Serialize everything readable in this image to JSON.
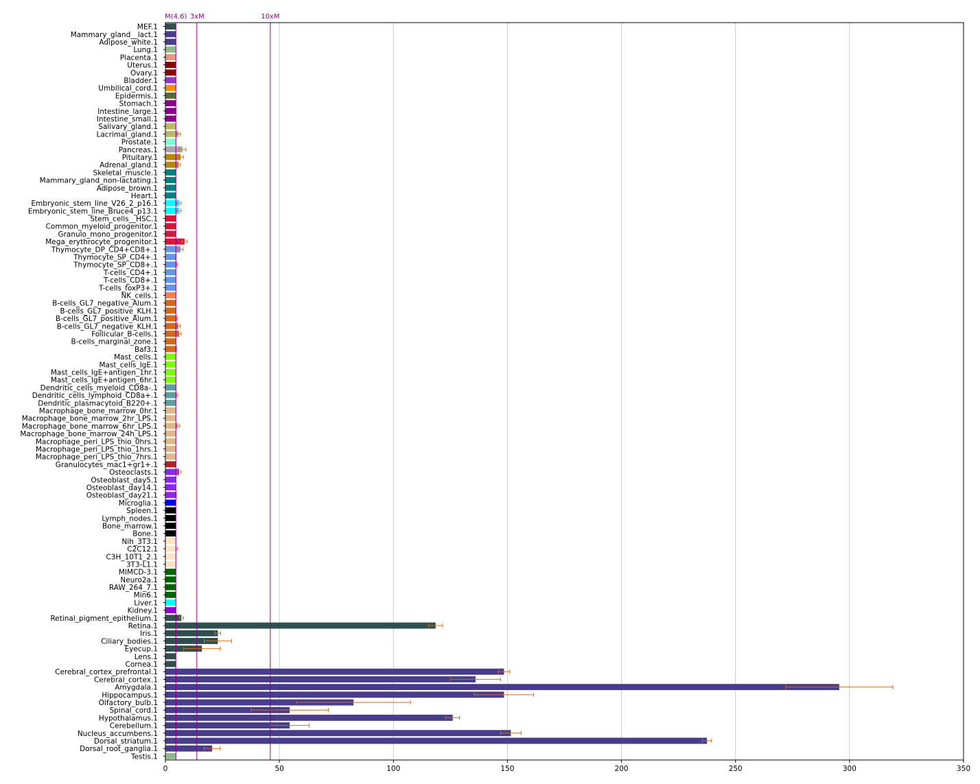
{
  "chart_data": {
    "type": "bar",
    "orientation": "horizontal",
    "xlim": [
      0,
      350
    ],
    "x_ticks": [
      0,
      50,
      100,
      150,
      200,
      250,
      300,
      350
    ],
    "grid": "vertical",
    "error_bar_color": "#d2691e",
    "ref_line_color": "#8b008b",
    "reference_lines": [
      {
        "label": "M(4.6)",
        "value": 4.6
      },
      {
        "label": "3xM",
        "value": 13.8
      },
      {
        "label": "10xM",
        "value": 46
      }
    ],
    "categories": [
      {
        "name": "MEF.1",
        "value": 4.6,
        "error": 0,
        "color": "#2f4f4f"
      },
      {
        "name": "Mammary_gland__lact.1",
        "value": 4.6,
        "error": 0,
        "color": "#483d8b"
      },
      {
        "name": "Adipose_white.1",
        "value": 4.6,
        "error": 0,
        "color": "#483d8b"
      },
      {
        "name": "Lung.1",
        "value": 4.6,
        "error": 0,
        "color": "#8fbc8f"
      },
      {
        "name": "Placenta.1",
        "value": 4.6,
        "error": 0,
        "color": "#e9967a"
      },
      {
        "name": "Uterus.1",
        "value": 4.6,
        "error": 0,
        "color": "#8b0000"
      },
      {
        "name": "Ovary.1",
        "value": 4.6,
        "error": 0,
        "color": "#8b0000"
      },
      {
        "name": "Bladder.1",
        "value": 4.6,
        "error": 0,
        "color": "#9932cc"
      },
      {
        "name": "Umbilical_cord.1",
        "value": 4.6,
        "error": 0,
        "color": "#ff8c00"
      },
      {
        "name": "Epidermis.1",
        "value": 4.6,
        "error": 0,
        "color": "#556b2f"
      },
      {
        "name": "Stomach.1",
        "value": 4.6,
        "error": 0,
        "color": "#8b008b"
      },
      {
        "name": "Intestine_large.1",
        "value": 4.8,
        "error": 0,
        "color": "#8b008b"
      },
      {
        "name": "Intestine_small.1",
        "value": 4.6,
        "error": 0,
        "color": "#8b008b"
      },
      {
        "name": "Salivary_gland.1",
        "value": 4.6,
        "error": 0,
        "color": "#bdb76b"
      },
      {
        "name": "Lacrimal_gland.1",
        "value": 5.8,
        "error": 0.8,
        "color": "#bdb76b"
      },
      {
        "name": "Prostate.1",
        "value": 4.6,
        "error": 0,
        "color": "#7fffd4"
      },
      {
        "name": "Pancreas.1",
        "value": 7.5,
        "error": 1.5,
        "color": "#a9a9a9"
      },
      {
        "name": "Pituitary.1",
        "value": 6.7,
        "error": 1.2,
        "color": "#b8860b"
      },
      {
        "name": "Adrenal_gland.1",
        "value": 5.8,
        "error": 0.8,
        "color": "#b8860b"
      },
      {
        "name": "Skeletal_muscle.1",
        "value": 4.6,
        "error": 0,
        "color": "#008080"
      },
      {
        "name": "Mammary_gland_non-lactating.1",
        "value": 4.6,
        "error": 0,
        "color": "#008080"
      },
      {
        "name": "Adipose_brown.1",
        "value": 4.6,
        "error": 0,
        "color": "#008080"
      },
      {
        "name": "Heart.1",
        "value": 4.6,
        "error": 0,
        "color": "#008080"
      },
      {
        "name": "Embryonic_stem_line_V26_2_p16.1",
        "value": 6.0,
        "error": 0.9,
        "color": "#00ffff"
      },
      {
        "name": "Embryonic_stem_line_Bruce4_p13.1",
        "value": 6.0,
        "error": 0.9,
        "color": "#00ffff"
      },
      {
        "name": "Stem_cells__HSC.1",
        "value": 4.6,
        "error": 0,
        "color": "#dc143c"
      },
      {
        "name": "Common_myeloid_progenitor.1",
        "value": 4.6,
        "error": 0,
        "color": "#dc143c"
      },
      {
        "name": "Granulo_mono_progenitor.1",
        "value": 4.6,
        "error": 0,
        "color": "#dc143c"
      },
      {
        "name": "Mega_erythrocyte_progenitor.1",
        "value": 8.4,
        "error": 1.2,
        "color": "#dc143c"
      },
      {
        "name": "Thymocyte_DP_CD4+CD8+.1",
        "value": 6.6,
        "error": 1.2,
        "color": "#6495ed"
      },
      {
        "name": "Thymocyte_SP_CD4+.1",
        "value": 4.8,
        "error": 0,
        "color": "#6495ed"
      },
      {
        "name": "Thymocyte_SP_CD8+.1",
        "value": 5.0,
        "error": 0.3,
        "color": "#6495ed"
      },
      {
        "name": "T-cells_CD4+.1",
        "value": 4.6,
        "error": 0,
        "color": "#6495ed"
      },
      {
        "name": "T-cells_CD8+.1",
        "value": 4.6,
        "error": 0,
        "color": "#6495ed"
      },
      {
        "name": "T-cells_foxP3+.1",
        "value": 4.6,
        "error": 0,
        "color": "#6495ed"
      },
      {
        "name": "NK_cells.1",
        "value": 4.6,
        "error": 0,
        "color": "#ff7f50"
      },
      {
        "name": "B-cells_GL7_negative_Alum.1",
        "value": 4.6,
        "error": 0,
        "color": "#d2691e"
      },
      {
        "name": "B-cells_GL7_positive_KLH.1",
        "value": 4.6,
        "error": 0,
        "color": "#d2691e"
      },
      {
        "name": "B-cells_GL7_positive_Alum.1",
        "value": 5.0,
        "error": 0.3,
        "color": "#d2691e"
      },
      {
        "name": "B-cells_GL7_negative_KLH.1",
        "value": 5.6,
        "error": 0.9,
        "color": "#d2691e"
      },
      {
        "name": "Follicular_B-cells.1",
        "value": 6.0,
        "error": 0.9,
        "color": "#d2691e"
      },
      {
        "name": "B-cells_marginal_zone.1",
        "value": 4.6,
        "error": 0,
        "color": "#d2691e"
      },
      {
        "name": "Baf3.1",
        "value": 5.0,
        "error": 0,
        "color": "#d2691e"
      },
      {
        "name": "Mast_cells.1",
        "value": 4.8,
        "error": 0,
        "color": "#7cfc00"
      },
      {
        "name": "Mast_cells_IgE.1",
        "value": 4.6,
        "error": 0,
        "color": "#7cfc00"
      },
      {
        "name": "Mast_cells_IgE+antigen_1hr.1",
        "value": 4.6,
        "error": 0,
        "color": "#7cfc00"
      },
      {
        "name": "Mast_cells_IgE+antigen_6hr.1",
        "value": 4.6,
        "error": 0,
        "color": "#7cfc00"
      },
      {
        "name": "Dendritic_cells_myeloid_CD8a-.1",
        "value": 4.6,
        "error": 0,
        "color": "#5f9ea0"
      },
      {
        "name": "Dendritic_cells_lymphoid_CD8a+.1",
        "value": 5.0,
        "error": 0.4,
        "color": "#5f9ea0"
      },
      {
        "name": "Dendritic_plasmacytoid_B220+.1",
        "value": 4.6,
        "error": 0,
        "color": "#5f9ea0"
      },
      {
        "name": "Macrophage_bone_marrow_0hr.1",
        "value": 4.6,
        "error": 0,
        "color": "#deb887"
      },
      {
        "name": "Macrophage_bone_marrow_2hr_LPS.1",
        "value": 4.6,
        "error": 0,
        "color": "#deb887"
      },
      {
        "name": "Macrophage_bone_marrow_6hr_LPS.1",
        "value": 5.6,
        "error": 0.7,
        "color": "#deb887"
      },
      {
        "name": "Macrophage_bone_marrow_24h_LPS.1",
        "value": 4.6,
        "error": 0,
        "color": "#deb887"
      },
      {
        "name": "Macrophage_peri_LPS_thio_0hrs.1",
        "value": 4.6,
        "error": 0,
        "color": "#deb887"
      },
      {
        "name": "Macrophage_peri_LPS_thio_1hrs.1",
        "value": 4.6,
        "error": 0,
        "color": "#deb887"
      },
      {
        "name": "Macrophage_peri_LPS_thio_7hrs.1",
        "value": 4.6,
        "error": 0,
        "color": "#deb887"
      },
      {
        "name": "Granulocytes_mac1+gr1+.1",
        "value": 4.6,
        "error": 0,
        "color": "#b22222"
      },
      {
        "name": "Osteoclasts.1",
        "value": 6.0,
        "error": 0.9,
        "color": "#8a2be2"
      },
      {
        "name": "Osteoblast_day5.1",
        "value": 4.6,
        "error": 0,
        "color": "#8a2be2"
      },
      {
        "name": "Osteoblast_day14.1",
        "value": 4.6,
        "error": 0,
        "color": "#8a2be2"
      },
      {
        "name": "Osteoblast_day21.1",
        "value": 4.9,
        "error": 0,
        "color": "#8a2be2"
      },
      {
        "name": "Microglia.1",
        "value": 4.6,
        "error": 0,
        "color": "#0000ff"
      },
      {
        "name": "Spleen.1",
        "value": 4.6,
        "error": 0,
        "color": "#000000"
      },
      {
        "name": "Lymph_nodes.1",
        "value": 4.6,
        "error": 0,
        "color": "#000000"
      },
      {
        "name": "Bone_marrow.1",
        "value": 4.6,
        "error": 0,
        "color": "#000000"
      },
      {
        "name": "Bone.1",
        "value": 4.6,
        "error": 0,
        "color": "#000000"
      },
      {
        "name": "Nih_3T3.1",
        "value": 4.6,
        "error": 0,
        "color": "#ffe4c4"
      },
      {
        "name": "C2C12.1",
        "value": 5.0,
        "error": 0.4,
        "color": "#ffe4c4"
      },
      {
        "name": "C3H_10T1_2.1",
        "value": 4.6,
        "error": 0,
        "color": "#ffe4c4"
      },
      {
        "name": "3T3-L1.1",
        "value": 4.6,
        "error": 0,
        "color": "#ffe4c4"
      },
      {
        "name": "MIMCD-3.1",
        "value": 4.6,
        "error": 0,
        "color": "#006400"
      },
      {
        "name": "Neuro2a.1",
        "value": 4.6,
        "error": 0,
        "color": "#006400"
      },
      {
        "name": "RAW_264_7.1",
        "value": 4.6,
        "error": 0,
        "color": "#006400"
      },
      {
        "name": "Min6.1",
        "value": 4.6,
        "error": 0,
        "color": "#006400"
      },
      {
        "name": "Liver.1",
        "value": 4.6,
        "error": 0,
        "color": "#00ffff"
      },
      {
        "name": "Kidney.1",
        "value": 4.6,
        "error": 0,
        "color": "#9400d3"
      },
      {
        "name": "Retinal_pigment_epithelium.1",
        "value": 7.0,
        "error": 0.9,
        "color": "#2f4f4f"
      },
      {
        "name": "Retina.1",
        "value": 118.5,
        "error": 3,
        "color": "#2f4f4f"
      },
      {
        "name": "Iris.1",
        "value": 23,
        "error": 1.2,
        "color": "#2f4f4f"
      },
      {
        "name": "Ciliary_bodies.1",
        "value": 23,
        "error": 6,
        "color": "#2f4f4f"
      },
      {
        "name": "Eyecup.1",
        "value": 16,
        "error": 8,
        "color": "#2f4f4f"
      },
      {
        "name": "Lens.1",
        "value": 4.6,
        "error": 0,
        "color": "#2f4f4f"
      },
      {
        "name": "Cornea.1",
        "value": 4.6,
        "error": 0,
        "color": "#2f4f4f"
      },
      {
        "name": "Cerebral_cortex_prefrontal.1",
        "value": 148.5,
        "error": 2.5,
        "color": "#483d8b"
      },
      {
        "name": "Cerebral_cortex.1",
        "value": 136,
        "error": 11,
        "color": "#483d8b"
      },
      {
        "name": "Amygdala.1",
        "value": 295.5,
        "error": 23.5,
        "color": "#483d8b"
      },
      {
        "name": "Hippocampus.1",
        "value": 148.5,
        "error": 13,
        "color": "#483d8b"
      },
      {
        "name": "Olfactory_bulb.1",
        "value": 82.5,
        "error": 25,
        "color": "#483d8b"
      },
      {
        "name": "Spinal_cord.1",
        "value": 54.5,
        "error": 17,
        "color": "#483d8b"
      },
      {
        "name": "Hypothalamus.1",
        "value": 126,
        "error": 3,
        "color": "#483d8b"
      },
      {
        "name": "Cerebellum.1",
        "value": 54.5,
        "error": 8.5,
        "color": "#483d8b"
      },
      {
        "name": "Nucleus_accumbens.1",
        "value": 151.5,
        "error": 4.5,
        "color": "#483d8b"
      },
      {
        "name": "Dorsal_striatum.1",
        "value": 237.5,
        "error": 2,
        "color": "#483d8b"
      },
      {
        "name": "Dorsal_root_ganglia.1",
        "value": 20.5,
        "error": 3.5,
        "color": "#483d8b"
      },
      {
        "name": "Testis.1",
        "value": 4.6,
        "error": 0,
        "color": "#8fbc8f"
      }
    ]
  }
}
